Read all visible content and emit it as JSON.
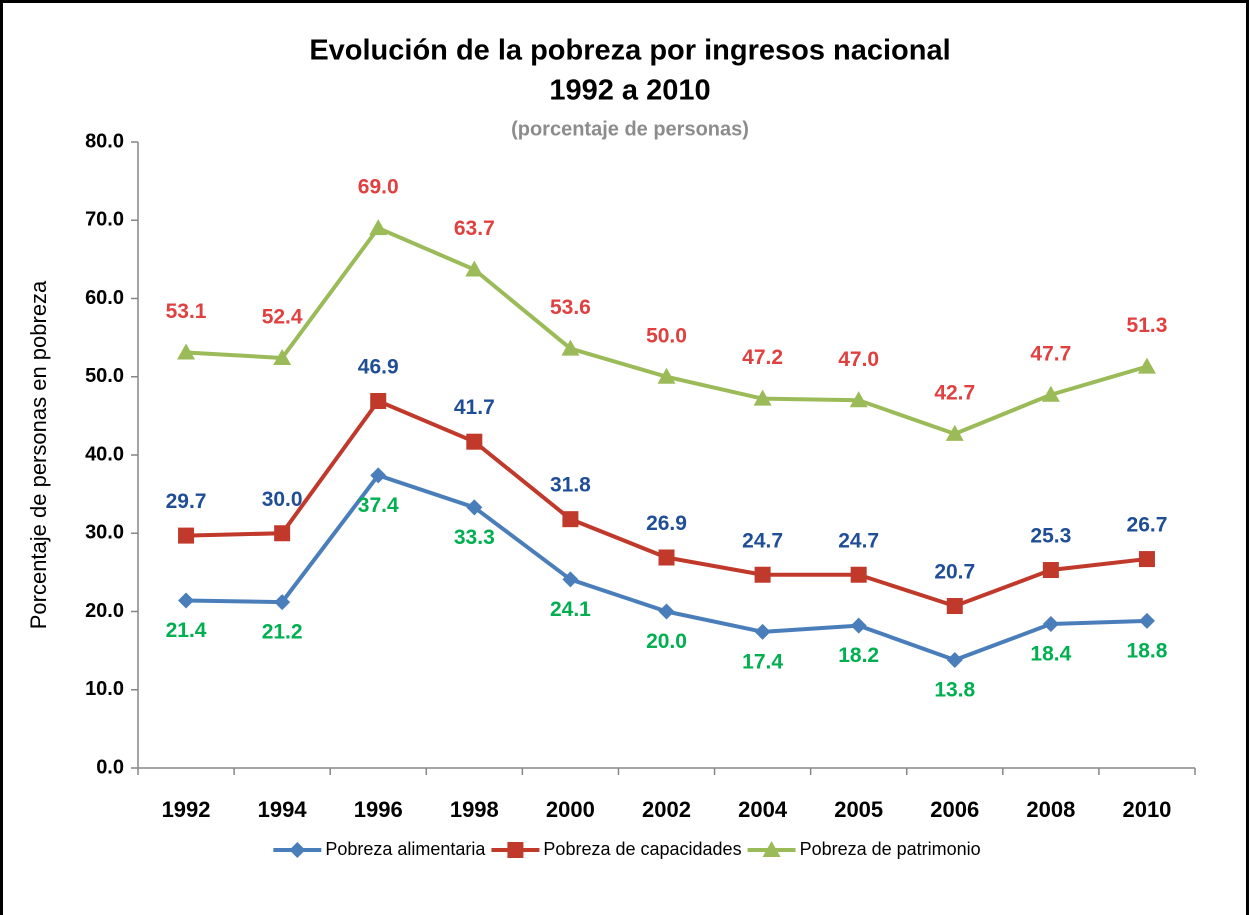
{
  "chart_data": {
    "type": "line",
    "title": [
      "Evolución de la pobreza por ingresos nacional",
      "1992 a 2010"
    ],
    "subtitle": "(porcentaje de personas)",
    "y_label": "Porcentaje de personas en pobreza",
    "categories": [
      "1992",
      "1994",
      "1996",
      "1998",
      "2000",
      "2002",
      "2004",
      "2005",
      "2006",
      "2008",
      "2010"
    ],
    "ylim": [
      0,
      80
    ],
    "yticks": [
      {
        "value": 0,
        "label": "0.0"
      },
      {
        "value": 10,
        "label": "10.0"
      },
      {
        "value": 20,
        "label": "20.0"
      },
      {
        "value": 30,
        "label": "30.0"
      },
      {
        "value": 40,
        "label": "40.0"
      },
      {
        "value": 50,
        "label": "50.0"
      },
      {
        "value": 60,
        "label": "60.0"
      },
      {
        "value": 70,
        "label": "70.0"
      },
      {
        "value": 80,
        "label": "80.0"
      }
    ],
    "grid": false,
    "legend": "bottom",
    "series": [
      {
        "name": "Pobreza alimentaria",
        "color": "#4a7ebb",
        "marker": "diamond",
        "label_color": "#00b050",
        "label_position": "below",
        "values": [
          21.4,
          21.2,
          37.4,
          33.3,
          24.1,
          20.0,
          17.4,
          18.2,
          13.8,
          18.4,
          18.8
        ],
        "value_labels": [
          "21.4",
          "21.2",
          "37.4",
          "33.3",
          "24.1",
          "20.0",
          "17.4",
          "18.2",
          "13.8",
          "18.4",
          "18.8"
        ]
      },
      {
        "name": "Pobreza de capacidades",
        "color": "#c0392b",
        "marker": "square",
        "label_color": "#1f4e96",
        "label_position": "above",
        "values": [
          29.7,
          30.0,
          46.9,
          41.7,
          31.8,
          26.9,
          24.7,
          24.7,
          20.7,
          25.3,
          26.7
        ],
        "value_labels": [
          "29.7",
          "30.0",
          "46.9",
          "41.7",
          "31.8",
          "26.9",
          "24.7",
          "24.7",
          "20.7",
          "25.3",
          "26.7"
        ]
      },
      {
        "name": "Pobreza de patrimonio",
        "color": "#9bbb59",
        "marker": "triangle",
        "label_color": "#e04040",
        "label_position": "above",
        "values": [
          53.1,
          52.4,
          69.0,
          63.7,
          53.6,
          50.0,
          47.2,
          47.0,
          42.7,
          47.7,
          51.3
        ],
        "value_labels": [
          "53.1",
          "52.4",
          "69.0",
          "63.7",
          "53.6",
          "50.0",
          "47.2",
          "47.0",
          "42.7",
          "47.7",
          "51.3"
        ]
      }
    ]
  }
}
